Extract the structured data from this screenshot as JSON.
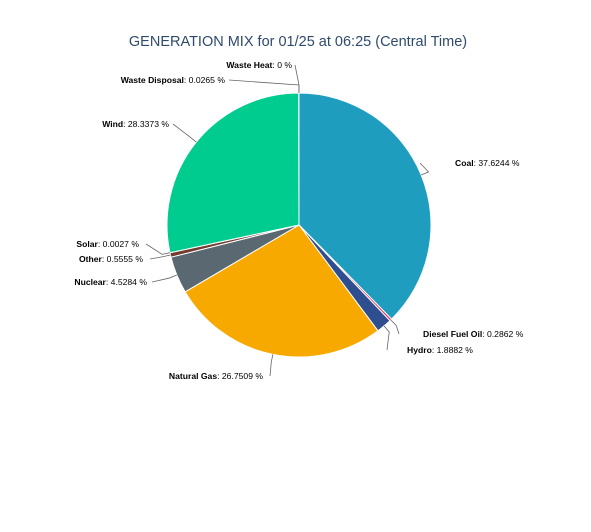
{
  "chart_data": {
    "type": "pie",
    "title": "GENERATION MIX for 01/25 at 06:25 (Central Time)",
    "unit": "%",
    "start_angle_deg": 0,
    "direction": "clockwise",
    "slices": [
      {
        "name": "Coal",
        "value": 37.6244,
        "label": "37.6244 %",
        "color": "#1f9dbf"
      },
      {
        "name": "Diesel Fuel Oil",
        "value": 0.2862,
        "label": "0.2862 %",
        "color": "#d9366b"
      },
      {
        "name": "Hydro",
        "value": 1.8882,
        "label": "1.8882 %",
        "color": "#2e4e8f"
      },
      {
        "name": "Natural Gas",
        "value": 26.7509,
        "label": "26.7509 %",
        "color": "#f8a900"
      },
      {
        "name": "Nuclear",
        "value": 4.5284,
        "label": "4.5284 %",
        "color": "#5a6872"
      },
      {
        "name": "Other",
        "value": 0.5555,
        "label": "0.5555 %",
        "color": "#6f3c2f"
      },
      {
        "name": "Solar",
        "value": 0.0027,
        "label": "0.0027 %",
        "color": "#f0dc00"
      },
      {
        "name": "Wind",
        "value": 28.3373,
        "label": "28.3373 %",
        "color": "#00cc8f"
      },
      {
        "name": "Waste Disposal",
        "value": 0.0265,
        "label": "0.0265 %",
        "color": "#8fa51b"
      },
      {
        "name": "Waste Heat",
        "value": 0,
        "label": "0 %",
        "color": "#b04a8c"
      }
    ]
  }
}
